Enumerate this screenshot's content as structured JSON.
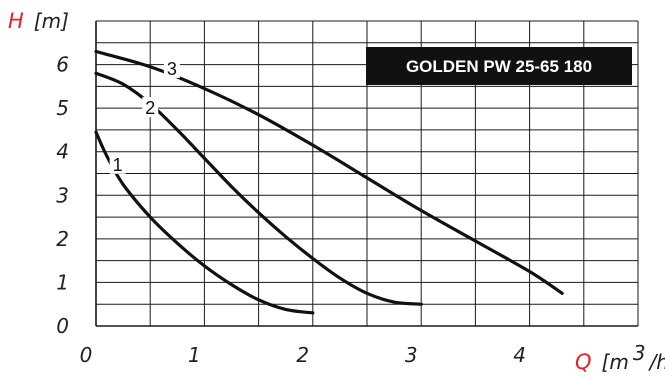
{
  "chart_data": {
    "type": "line",
    "title": "GOLDEN PW 25-65 180",
    "y_axis": {
      "symbol": "H",
      "unit": "[m]",
      "min": 0,
      "max": 7,
      "ticks": [
        "0",
        "1",
        "2",
        "3",
        "4",
        "5",
        "6"
      ]
    },
    "x_axis": {
      "symbol": "Q",
      "unit_prefix": "[m",
      "unit_sup": "3",
      "unit_suffix": "/h]",
      "min": 0,
      "max": 5,
      "ticks": [
        "0",
        "1",
        "2",
        "3",
        "4"
      ]
    },
    "grid": true,
    "colors": {
      "axis_symbol": "#e8202a",
      "curve": "#111111",
      "grid": "#1a1a1a",
      "title_bg": "#111111",
      "title_fg": "#ffffff"
    },
    "series": [
      {
        "label": "1",
        "label_at": [
          0.2,
          3.7
        ],
        "points": [
          [
            0,
            4.45
          ],
          [
            0.1,
            3.9
          ],
          [
            0.25,
            3.25
          ],
          [
            0.5,
            2.5
          ],
          [
            0.75,
            1.9
          ],
          [
            1.0,
            1.38
          ],
          [
            1.25,
            0.95
          ],
          [
            1.5,
            0.6
          ],
          [
            1.75,
            0.38
          ],
          [
            2.0,
            0.3
          ]
        ]
      },
      {
        "label": "2",
        "label_at": [
          0.5,
          5.0
        ],
        "points": [
          [
            0,
            5.8
          ],
          [
            0.25,
            5.55
          ],
          [
            0.5,
            5.1
          ],
          [
            0.75,
            4.5
          ],
          [
            1.0,
            3.85
          ],
          [
            1.25,
            3.2
          ],
          [
            1.5,
            2.6
          ],
          [
            1.75,
            2.05
          ],
          [
            2.0,
            1.55
          ],
          [
            2.25,
            1.1
          ],
          [
            2.5,
            0.75
          ],
          [
            2.75,
            0.55
          ],
          [
            3.0,
            0.5
          ]
        ]
      },
      {
        "label": "3",
        "label_at": [
          0.7,
          5.9
        ],
        "points": [
          [
            0,
            6.3
          ],
          [
            0.5,
            5.95
          ],
          [
            1.0,
            5.45
          ],
          [
            1.5,
            4.85
          ],
          [
            2.0,
            4.15
          ],
          [
            2.5,
            3.4
          ],
          [
            3.0,
            2.65
          ],
          [
            3.5,
            1.95
          ],
          [
            4.0,
            1.25
          ],
          [
            4.3,
            0.75
          ]
        ]
      }
    ]
  }
}
